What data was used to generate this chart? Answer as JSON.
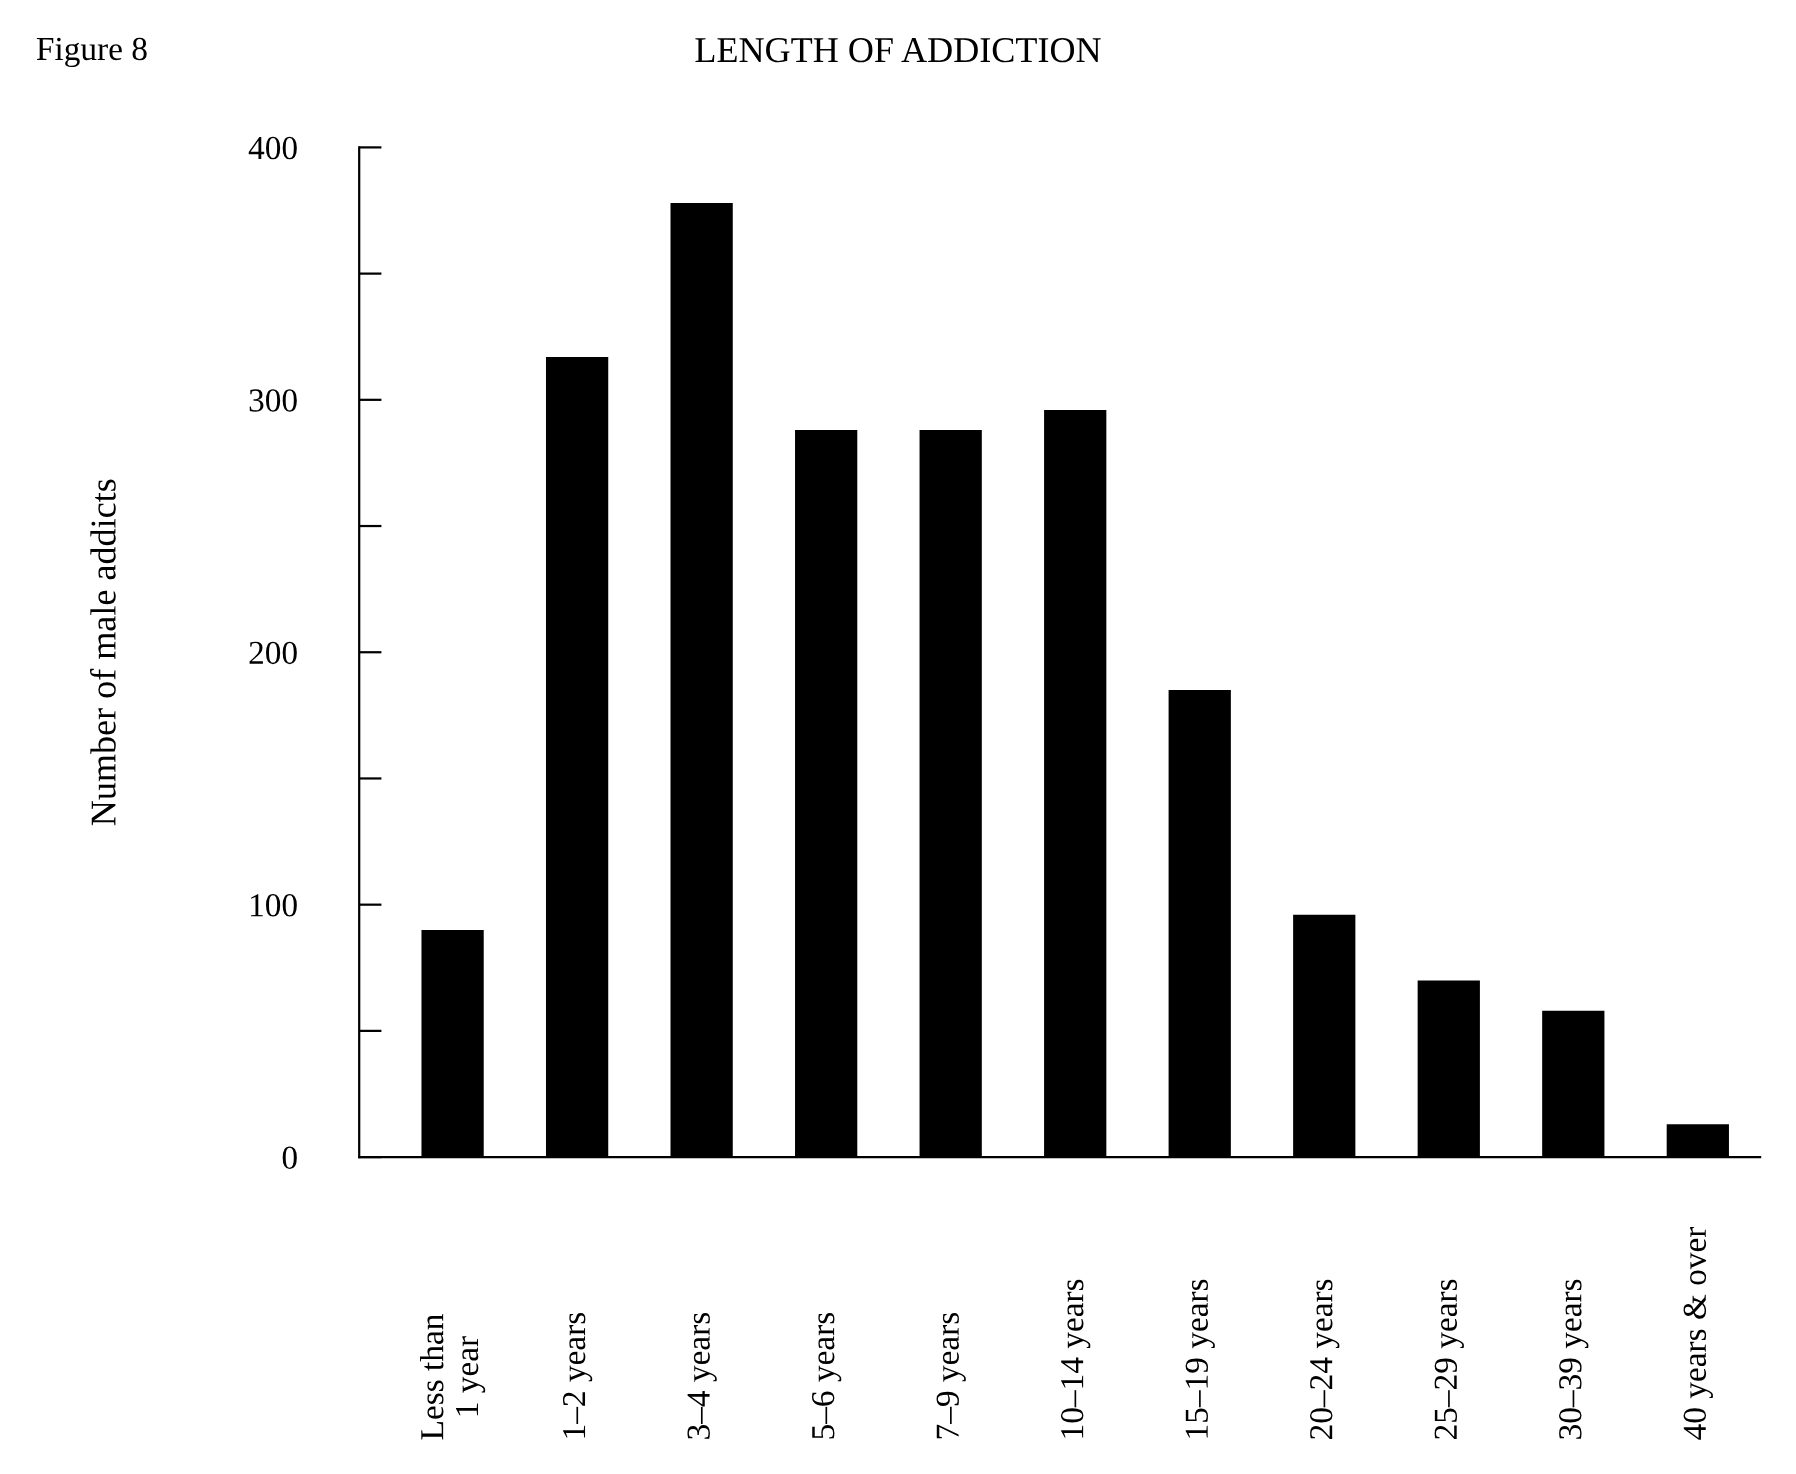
{
  "chart_data": {
    "type": "bar",
    "title": "LENGTH OF ADDICTION",
    "ylabel": "Number of male addicts",
    "annotations": [
      "Figure 8"
    ],
    "categories": [
      "Less than\n1 year",
      "1–2 years",
      "3–4 years",
      "5–6 years",
      "7–9 years",
      "10–14 years",
      "15–19 years",
      "20–24 years",
      "25–29 years",
      "30–39 years",
      "40 years & over"
    ],
    "values": [
      90,
      317,
      378,
      288,
      288,
      296,
      185,
      96,
      70,
      58,
      13
    ],
    "color": "#000000",
    "ylim": [
      0,
      400
    ],
    "yticks": [
      0,
      {
        "value": 50,
        "label": null
      },
      100,
      {
        "value": 150,
        "label": null
      },
      200,
      {
        "value": 250,
        "label": null
      },
      300,
      {
        "value": 350,
        "label": null
      },
      400
    ],
    "grid": false,
    "legend": false
  }
}
